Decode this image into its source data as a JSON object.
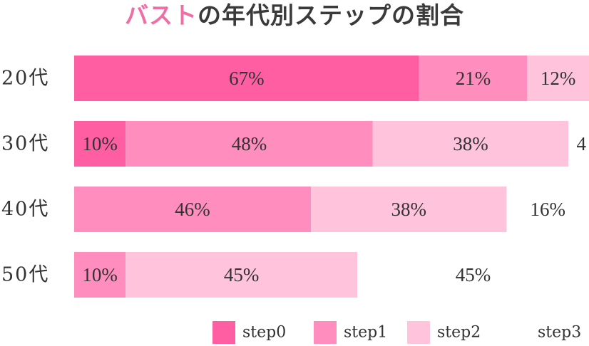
{
  "chart_data": {
    "type": "bar",
    "orientation": "horizontal",
    "stacked": true,
    "title_accent": "バスト",
    "title_rest": "の年代別ステップの割合",
    "categories": [
      "20代",
      "30代",
      "40代",
      "50代"
    ],
    "series": [
      {
        "name": "step0",
        "color": "#ff5fa2",
        "values": [
          67,
          10,
          0,
          0
        ]
      },
      {
        "name": "step1",
        "color": "#ff8ebf",
        "values": [
          21,
          48,
          46,
          10
        ]
      },
      {
        "name": "step2",
        "color": "#ffc3dc",
        "values": [
          12,
          38,
          38,
          45
        ]
      },
      {
        "name": "step3",
        "color": "#ffffff",
        "values": [
          0,
          4,
          16,
          45
        ]
      }
    ],
    "segment_labels": [
      [
        "67%",
        "21%",
        "12%",
        ""
      ],
      [
        "10%",
        "48%",
        "38%",
        "4"
      ],
      [
        "",
        "46%",
        "38%",
        "16%"
      ],
      [
        "",
        "10%",
        "45%",
        "45%"
      ]
    ],
    "xlim": [
      0,
      100
    ],
    "grid": false,
    "legend": "bottom-right"
  }
}
